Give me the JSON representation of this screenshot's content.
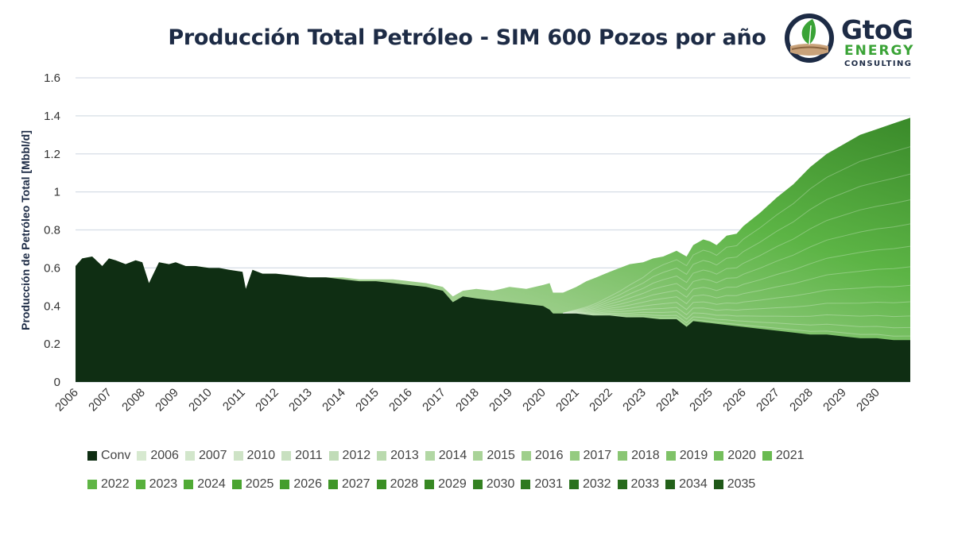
{
  "chart_data": {
    "type": "area",
    "stacked": true,
    "title": "Producción Total Petróleo - SIM 600 Pozos por año",
    "xlabel": "",
    "ylabel": "Producción de Petróleo Total [Mbbl/d]",
    "ylim": [
      0,
      1.6
    ],
    "xlim": [
      2006,
      2031
    ],
    "y_ticks": [
      "0",
      "0.2",
      "0.4",
      "0.6",
      "0.8",
      "1",
      "1.2",
      "1.4",
      "1.6"
    ],
    "x_ticks": [
      "2006",
      "2007",
      "2008",
      "2009",
      "2010",
      "2011",
      "2012",
      "2013",
      "2014",
      "2015",
      "2016",
      "2017",
      "2018",
      "2019",
      "2020",
      "2021",
      "2022",
      "2023",
      "2024",
      "2025",
      "2026",
      "2027",
      "2028",
      "2029",
      "2030"
    ],
    "grid": true,
    "legend_position": "bottom",
    "legend_labels": [
      "Conv",
      "2006",
      "2007",
      "2010",
      "2011",
      "2012",
      "2013",
      "2014",
      "2015",
      "2016",
      "2017",
      "2018",
      "2019",
      "2020",
      "2021",
      "2022",
      "2023",
      "2024",
      "2025",
      "2026",
      "2027",
      "2028",
      "2029",
      "2030",
      "2031",
      "2032",
      "2033",
      "2034",
      "2035"
    ],
    "legend_colors": [
      "#0f2e13",
      "#d7e9d0",
      "#d2e6cb",
      "#cee3c6",
      "#c8e0c0",
      "#c1dcb8",
      "#badaae",
      "#b2d7a4",
      "#a9d398",
      "#9fcf8c",
      "#95cb80",
      "#8ac674",
      "#7fc268",
      "#74be5c",
      "#69ba50",
      "#5fb545",
      "#57b03c",
      "#50aa35",
      "#4aa430",
      "#449d2c",
      "#3f9628",
      "#3b8f25",
      "#378823",
      "#338121",
      "#2f7a20",
      "#2b721e",
      "#276a1c",
      "#23611a",
      "#1f5818"
    ],
    "total": {
      "x": [
        2006.0,
        2006.2,
        2006.5,
        2006.8,
        2007.0,
        2007.2,
        2007.5,
        2007.8,
        2008.0,
        2008.2,
        2008.5,
        2008.8,
        2009.0,
        2009.3,
        2009.6,
        2010.0,
        2010.3,
        2010.6,
        2011.0,
        2011.1,
        2011.3,
        2011.6,
        2012.0,
        2012.5,
        2013.0,
        2013.5,
        2014.0,
        2014.5,
        2015.0,
        2015.5,
        2016.0,
        2016.5,
        2017.0,
        2017.3,
        2017.6,
        2018.0,
        2018.5,
        2019.0,
        2019.5,
        2020.0,
        2020.2,
        2020.3,
        2020.6,
        2021.0,
        2021.3,
        2021.6,
        2022.0,
        2022.3,
        2022.6,
        2023.0,
        2023.3,
        2023.6,
        2024.0,
        2024.3,
        2024.5,
        2024.8,
        2025.0,
        2025.2,
        2025.5,
        2025.8,
        2026.0,
        2026.5,
        2027.0,
        2027.5,
        2028.0,
        2028.5,
        2029.0,
        2029.5,
        2030.0,
        2030.5,
        2031.0
      ],
      "y": [
        0.61,
        0.65,
        0.66,
        0.61,
        0.65,
        0.64,
        0.62,
        0.64,
        0.63,
        0.52,
        0.63,
        0.62,
        0.63,
        0.61,
        0.61,
        0.6,
        0.6,
        0.59,
        0.58,
        0.49,
        0.59,
        0.57,
        0.57,
        0.56,
        0.55,
        0.55,
        0.55,
        0.54,
        0.54,
        0.54,
        0.53,
        0.52,
        0.5,
        0.45,
        0.48,
        0.49,
        0.48,
        0.5,
        0.49,
        0.51,
        0.52,
        0.47,
        0.47,
        0.5,
        0.53,
        0.55,
        0.58,
        0.6,
        0.62,
        0.63,
        0.65,
        0.66,
        0.69,
        0.66,
        0.72,
        0.75,
        0.74,
        0.72,
        0.77,
        0.78,
        0.82,
        0.89,
        0.97,
        1.04,
        1.13,
        1.2,
        1.25,
        1.3,
        1.33,
        1.36,
        1.39
      ]
    },
    "conv": {
      "x": [
        2006.0,
        2006.2,
        2006.5,
        2006.8,
        2007.0,
        2007.2,
        2007.5,
        2007.8,
        2008.0,
        2008.2,
        2008.5,
        2008.8,
        2009.0,
        2009.3,
        2009.6,
        2010.0,
        2010.3,
        2010.6,
        2011.0,
        2011.1,
        2011.3,
        2011.6,
        2012.0,
        2012.5,
        2013.0,
        2013.5,
        2014.0,
        2014.5,
        2015.0,
        2015.5,
        2016.0,
        2016.5,
        2017.0,
        2017.3,
        2017.6,
        2018.0,
        2018.5,
        2019.0,
        2019.5,
        2020.0,
        2020.2,
        2020.3,
        2021.0,
        2021.5,
        2022.0,
        2022.5,
        2023.0,
        2023.5,
        2024.0,
        2024.3,
        2024.5,
        2025.0,
        2025.5,
        2026.0,
        2026.5,
        2027.0,
        2027.5,
        2028.0,
        2028.5,
        2029.0,
        2029.5,
        2030.0,
        2030.5,
        2031.0
      ],
      "y": [
        0.61,
        0.65,
        0.66,
        0.61,
        0.65,
        0.64,
        0.62,
        0.64,
        0.63,
        0.52,
        0.63,
        0.62,
        0.63,
        0.61,
        0.61,
        0.6,
        0.6,
        0.59,
        0.58,
        0.49,
        0.59,
        0.57,
        0.57,
        0.56,
        0.55,
        0.55,
        0.54,
        0.53,
        0.53,
        0.52,
        0.51,
        0.5,
        0.48,
        0.42,
        0.45,
        0.44,
        0.43,
        0.42,
        0.41,
        0.4,
        0.38,
        0.36,
        0.36,
        0.35,
        0.35,
        0.34,
        0.34,
        0.33,
        0.33,
        0.29,
        0.32,
        0.31,
        0.3,
        0.29,
        0.28,
        0.27,
        0.26,
        0.25,
        0.25,
        0.24,
        0.23,
        0.23,
        0.22,
        0.22
      ]
    },
    "vintage_bands_note": "Stacked areas for each drilling-year vintage lie between Conv and Total."
  },
  "logo": {
    "brand": "GtoG",
    "line2": "ENERGY",
    "line3": "CONSULTING",
    "icon": "leaf-circle-icon"
  }
}
